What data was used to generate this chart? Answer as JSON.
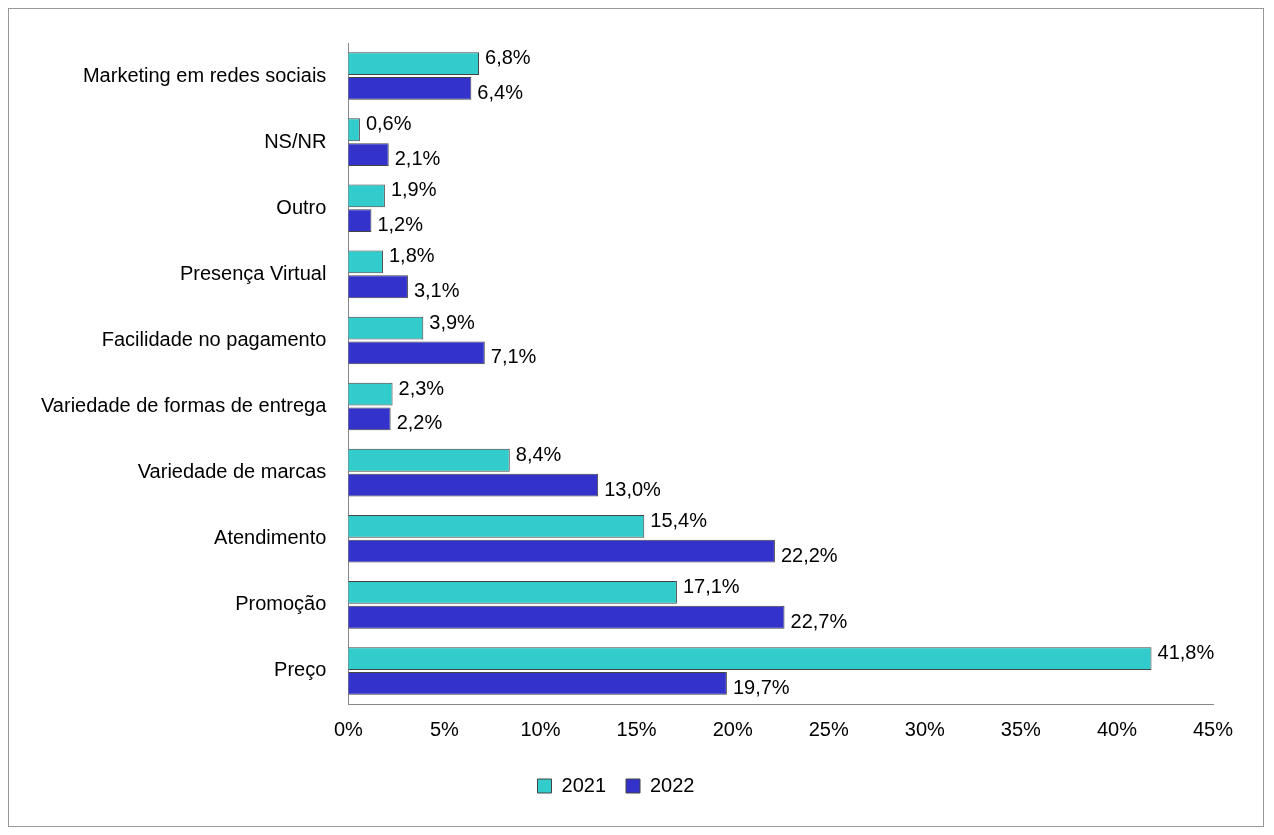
{
  "chart_data": {
    "type": "bar",
    "orientation": "horizontal",
    "categories": [
      "Marketing em redes sociais",
      "NS/NR",
      "Outro",
      "Presença Virtual",
      "Facilidade no pagamento",
      "Variedade de formas de entrega",
      "Variedade de marcas",
      "Atendimento",
      "Promoção",
      "Preço"
    ],
    "series": [
      {
        "name": "2021",
        "color": "#33cccc",
        "values": [
          6.8,
          0.6,
          1.9,
          1.8,
          3.9,
          2.3,
          8.4,
          15.4,
          17.1,
          41.8
        ],
        "value_labels": [
          "6,8%",
          "0,6%",
          "1,9%",
          "1,8%",
          "3,9%",
          "2,3%",
          "8,4%",
          "15,4%",
          "17,1%",
          "41,8%"
        ]
      },
      {
        "name": "2022",
        "color": "#3333cc",
        "values": [
          6.4,
          2.1,
          1.2,
          3.1,
          7.1,
          2.2,
          13.0,
          22.2,
          22.7,
          19.7
        ],
        "value_labels": [
          "6,4%",
          "2,1%",
          "1,2%",
          "3,1%",
          "7,1%",
          "2,2%",
          "13,0%",
          "22,2%",
          "22,7%",
          "19,7%"
        ]
      }
    ],
    "xlim": [
      0,
      45
    ],
    "xticks": [
      {
        "value": 0,
        "label": "0%"
      },
      {
        "value": 5,
        "label": "5%"
      },
      {
        "value": 10,
        "label": "10%"
      },
      {
        "value": 15,
        "label": "15%"
      },
      {
        "value": 20,
        "label": "20%"
      },
      {
        "value": 25,
        "label": "25%"
      },
      {
        "value": 30,
        "label": "30%"
      },
      {
        "value": 35,
        "label": "35%"
      },
      {
        "value": 40,
        "label": "40%"
      },
      {
        "value": 45,
        "label": "45%"
      }
    ],
    "grid": false,
    "legend": "bottom"
  }
}
